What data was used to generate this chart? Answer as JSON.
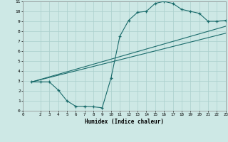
{
  "title": "",
  "xlabel": "Humidex (Indice chaleur)",
  "xlim": [
    0,
    23
  ],
  "ylim": [
    0,
    11
  ],
  "xticks": [
    0,
    2,
    3,
    4,
    5,
    6,
    7,
    8,
    9,
    10,
    11,
    12,
    13,
    14,
    15,
    16,
    17,
    18,
    19,
    20,
    21,
    22,
    23
  ],
  "yticks": [
    0,
    1,
    2,
    3,
    4,
    5,
    6,
    7,
    8,
    9,
    10,
    11
  ],
  "bg_color": "#cde8e5",
  "grid_color": "#aacfcc",
  "line_color": "#1a6b6b",
  "curve_x": [
    1,
    2,
    3,
    4,
    5,
    6,
    7,
    8,
    9,
    10,
    11,
    12,
    13,
    14,
    15,
    16,
    17,
    18,
    19,
    20,
    21,
    22,
    23
  ],
  "curve_y": [
    2.9,
    2.9,
    2.9,
    2.1,
    1.0,
    0.45,
    0.45,
    0.4,
    0.3,
    3.3,
    7.5,
    9.1,
    9.9,
    10.0,
    10.8,
    11.0,
    10.8,
    10.2,
    10.0,
    9.8,
    9.0,
    9.0,
    9.1
  ],
  "line2_x": [
    1,
    23
  ],
  "line2_y": [
    2.9,
    7.8
  ],
  "line3_x": [
    1,
    23
  ],
  "line3_y": [
    2.9,
    8.5
  ]
}
